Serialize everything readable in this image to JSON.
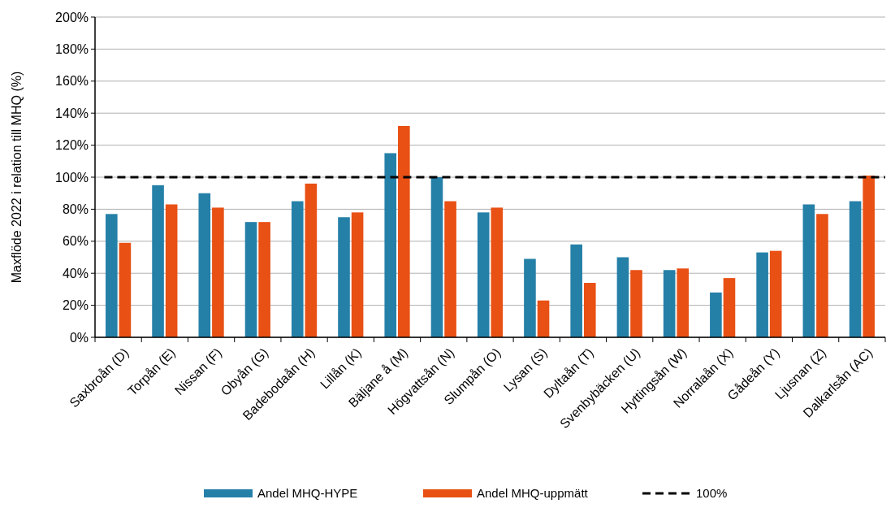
{
  "chart_data": {
    "type": "bar",
    "ylabel": "Maxflöde 2022 i relation till MHQ (%)",
    "categories": [
      "Saxbroån (D)",
      "Torpån (E)",
      "Nissan (F)",
      "Obyån (G)",
      "Badebodaån (H)",
      "Lillån (K)",
      "Bäljane å (M)",
      "Högvattsån (N)",
      "Slumpån (O)",
      "Lysan (S)",
      "Dyltaån (T)",
      "Svenbybäcken (U)",
      "Hyttingsån (W)",
      "Norralaån (X)",
      "Gådeån (Y)",
      "Ljusnan (Z)",
      "Dalkarlsån (AC)"
    ],
    "series": [
      {
        "name": "Andel MHQ-HYPE",
        "color": "#2580a8",
        "values": [
          77,
          95,
          90,
          72,
          85,
          75,
          115,
          100,
          78,
          49,
          58,
          50,
          42,
          28,
          53,
          83,
          85
        ]
      },
      {
        "name": "Andel MHQ-uppmätt",
        "color": "#e85014",
        "values": [
          59,
          83,
          81,
          72,
          96,
          78,
          132,
          85,
          81,
          23,
          34,
          42,
          43,
          37,
          54,
          77,
          101
        ]
      }
    ],
    "ylim": [
      0,
      200
    ],
    "yticks": [
      {
        "value": 0,
        "label": "0%"
      },
      {
        "value": 20,
        "label": "20%"
      },
      {
        "value": 40,
        "label": "40%"
      },
      {
        "value": 60,
        "label": "60%"
      },
      {
        "value": 80,
        "label": "80%"
      },
      {
        "value": 100,
        "label": "100%"
      },
      {
        "value": 120,
        "label": "120%"
      },
      {
        "value": 140,
        "label": "140%"
      },
      {
        "value": 160,
        "label": "160%"
      },
      {
        "value": 180,
        "label": "180%"
      },
      {
        "value": 200,
        "label": "200%"
      }
    ],
    "grid": "y",
    "legend": "bottom",
    "ref_lines": [
      {
        "axis": "y",
        "value": 100,
        "label": "100%",
        "color": "#000000",
        "line_style": "dashed"
      }
    ]
  }
}
